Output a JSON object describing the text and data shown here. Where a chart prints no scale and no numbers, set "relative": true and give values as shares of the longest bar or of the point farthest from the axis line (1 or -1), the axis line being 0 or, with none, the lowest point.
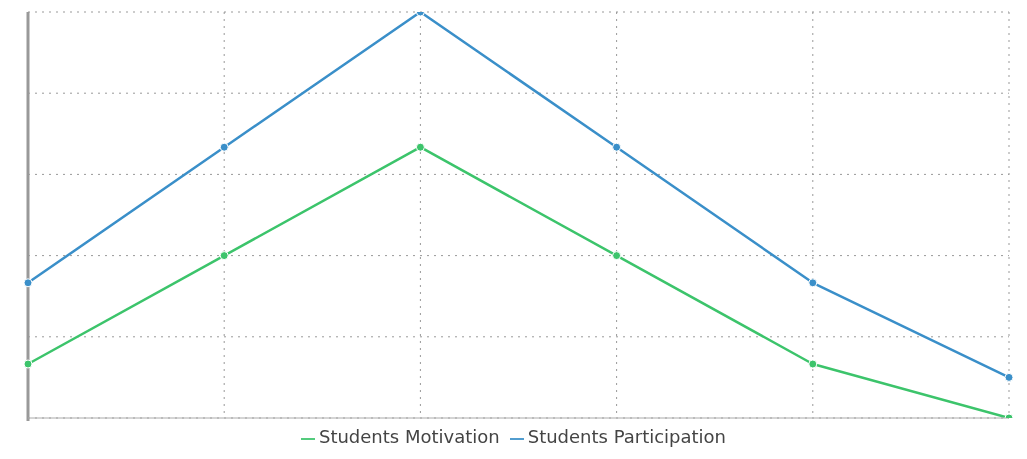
{
  "chart_data": {
    "type": "line",
    "relative": true,
    "categories": [
      null,
      null,
      null,
      null,
      null,
      null
    ],
    "series": [
      {
        "name": "Students Motivation",
        "color": "#3cc46b",
        "values": [
          0.133,
          0.4,
          0.667,
          0.4,
          0.133,
          0
        ]
      },
      {
        "name": "Students Participation",
        "color": "#3a8fc9",
        "values": [
          0.333,
          0.667,
          1,
          0.667,
          0.333,
          0.1
        ]
      }
    ],
    "grid": true,
    "legend": "bottom",
    "marker": "circle",
    "line_style": "solid",
    "tick_labels": false
  }
}
